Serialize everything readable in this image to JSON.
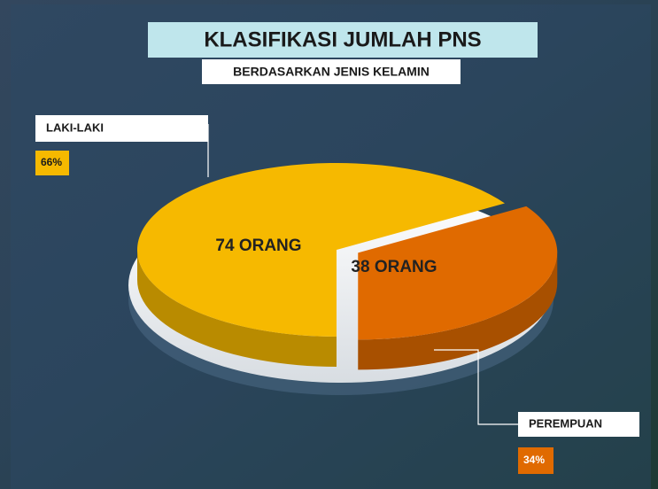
{
  "chart_data": {
    "type": "pie3d",
    "title": "KLASIFIKASI JUMLAH PNS",
    "subtitle": "BERDASARKAN JENIS KELAMIN",
    "categories": [
      "LAKI-LAKI",
      "PEREMPUAN"
    ],
    "values": [
      66,
      34
    ],
    "value_labels": [
      "66%",
      "34%"
    ],
    "counts": [
      74,
      38
    ],
    "count_labels": [
      "74 ORANG",
      "38 ORANG"
    ],
    "colors": [
      "#f6b900",
      "#e06a00"
    ]
  }
}
